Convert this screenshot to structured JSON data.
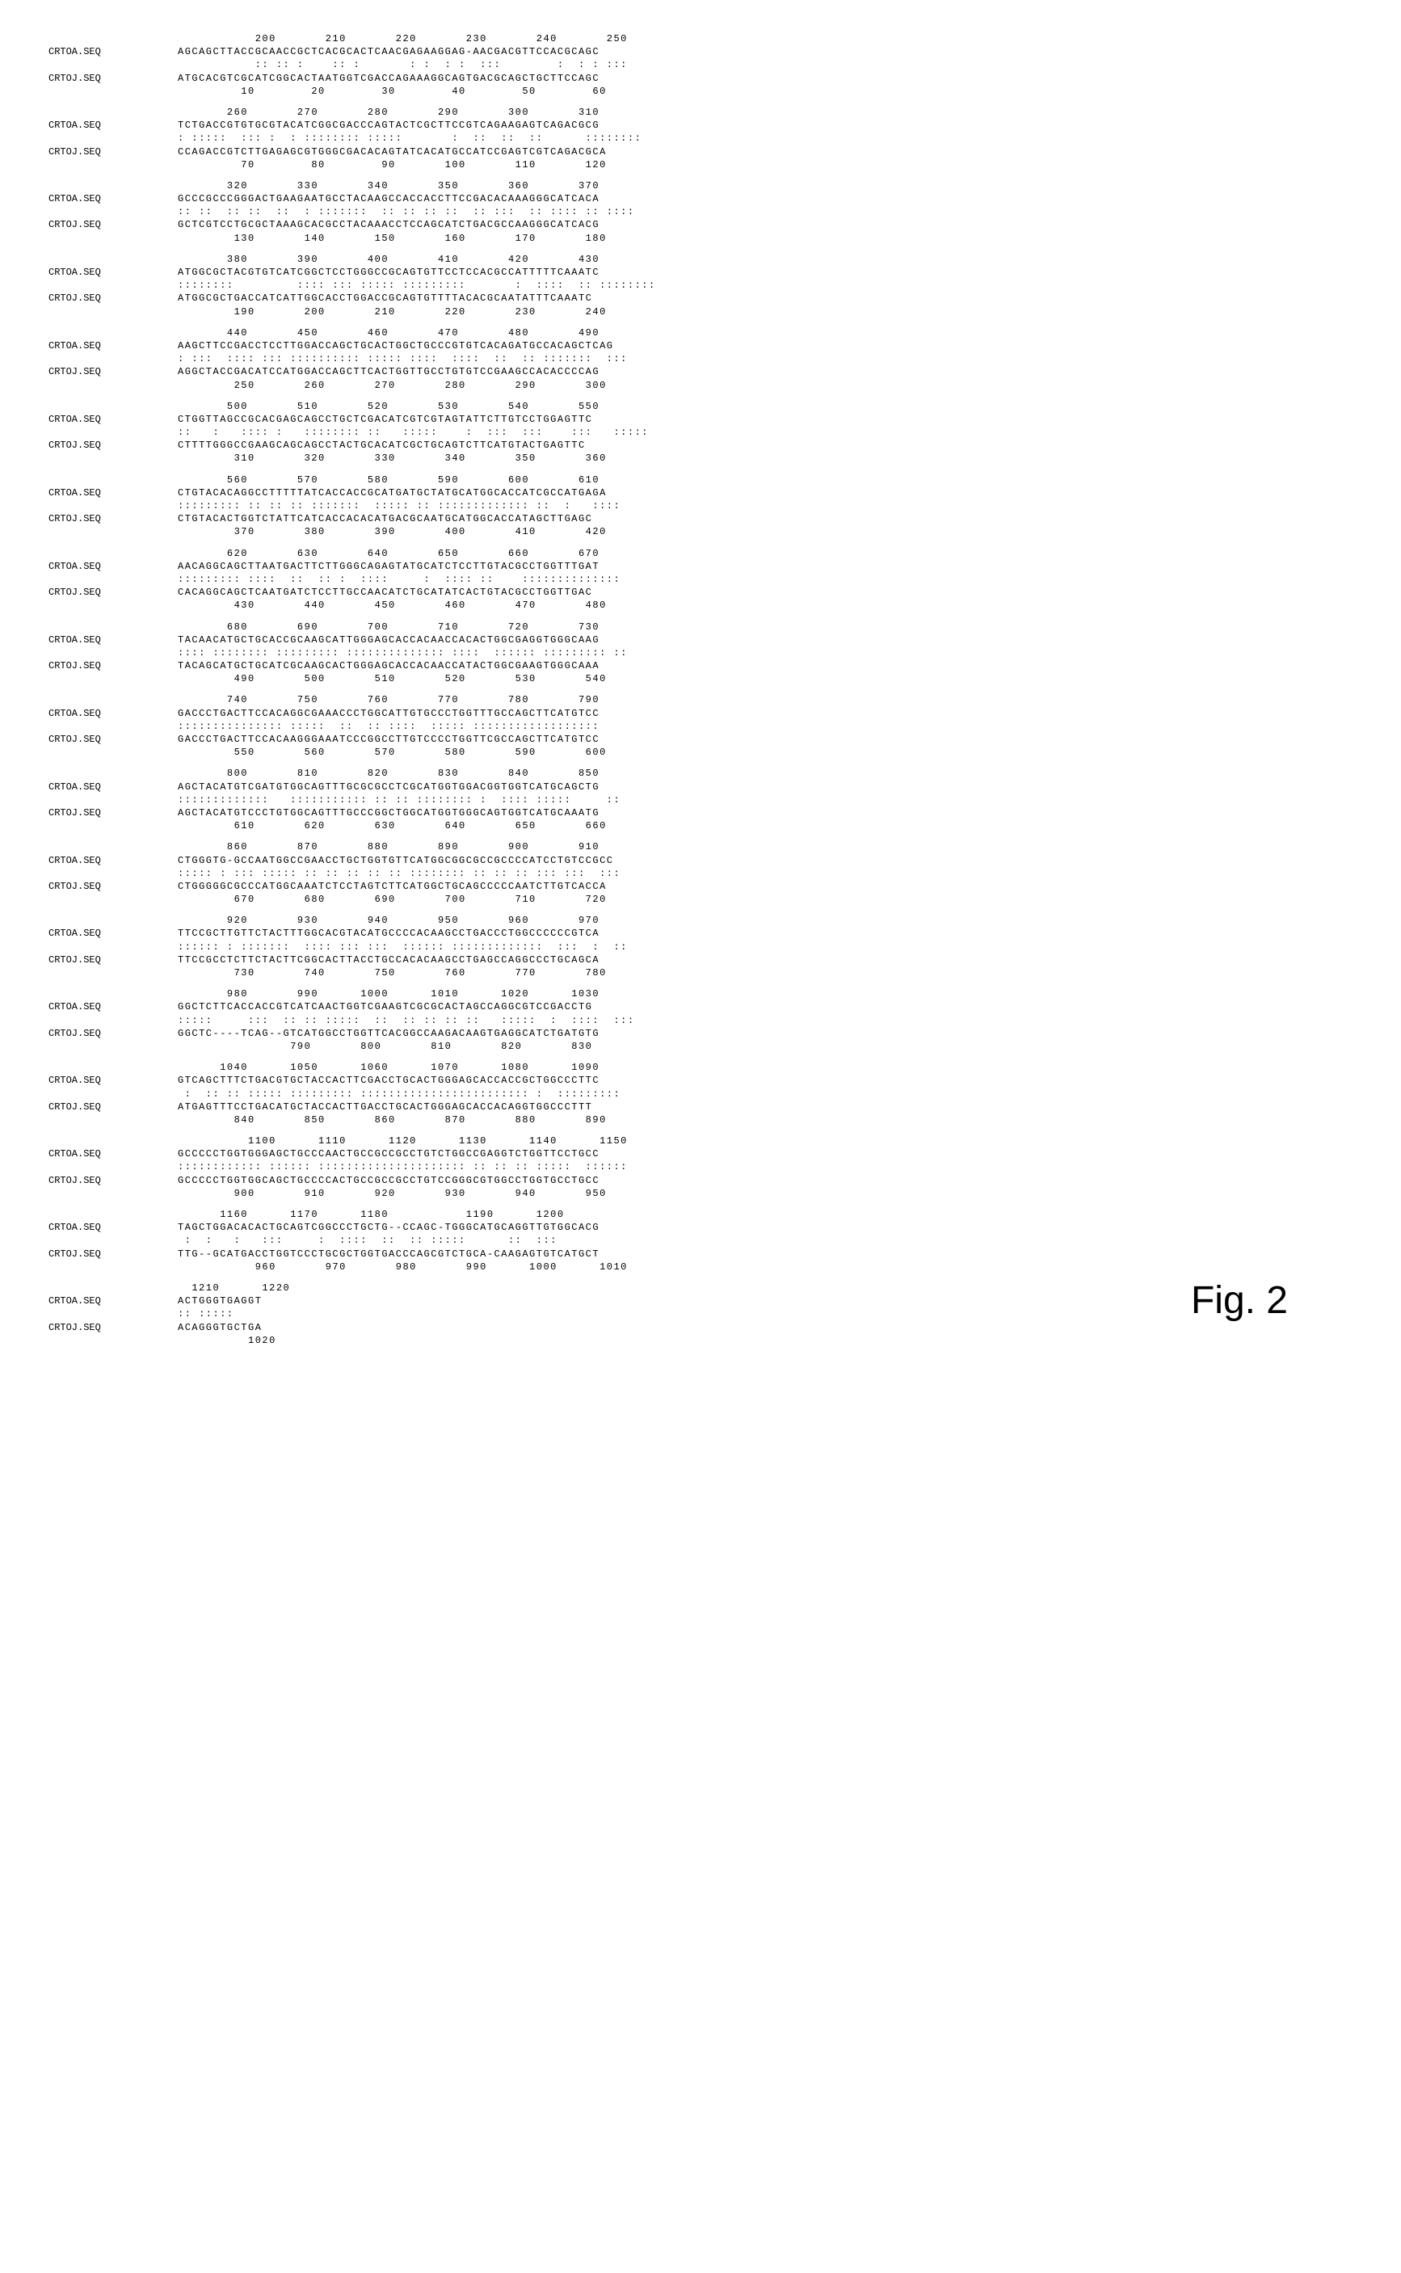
{
  "figure_label": "Fig. 2",
  "seq_label_a": "CRTOA.SEQ",
  "seq_label_j": "CRTOJ.SEQ",
  "blocks": [
    {
      "top_pos": "           200       210       220       230       240       250",
      "seq_a": "AGCAGCTTACCGCAACCGCTCACGCACTCAACGAGAAGGAG-AACGACGTTCCACGCAGC",
      "match": "           :: :: :    :: :       : :  : :  :::        :  : : :::",
      "seq_j": "ATGCACGTCGCATCGGCACTAATGGTCGACCAGAAAGGCAGTGACGCAGCTGCTTCCAGC",
      "bot_pos": "         10        20        30        40        50        60"
    },
    {
      "top_pos": "       260       270       280       290       300       310",
      "seq_a": "TCTGACCGTGTGCGTACATCGGCGACCCAGTACTCGCTTCCGTCAGAAGAGTCAGACGCG",
      "match": ": :::::  ::: :  : :::::::: :::::       :  ::  ::  ::      ::::::::",
      "seq_j": "CCAGACCGTCTTGAGAGCGTGGGCGACACAGTATCACATGCCATCCGAGTCGTCAGACGCA",
      "bot_pos": "         70        80        90       100       110       120"
    },
    {
      "top_pos": "       320       330       340       350       360       370",
      "seq_a": "GCCCGCCCGGGACTGAAGAATGCCTACAAGCCACCACCTTCCGACACAAAGGGCATCACA",
      "match": ":: ::  :: ::  ::  : :::::::  :: :: :: ::  :: :::  :: :::: :: ::::",
      "seq_j": "GCTCGTCCTGCGCTAAAGCACGCCTACAAACCTCCAGCATCTGACGCCAAGGGCATCACG",
      "bot_pos": "        130       140       150       160       170       180"
    },
    {
      "top_pos": "       380       390       400       410       420       430",
      "seq_a": "ATGGCGCTACGTGTCATCGGCTCCTGGGCCGCAGTGTTCCTCCACGCCATTTTTCAAATC",
      "match": "::::::::         :::: ::: ::::: :::::::::       :  ::::  :: ::::::::",
      "seq_j": "ATGGCGCTGACCATCATTGGCACCTGGACCGCAGTGTTTTACACGCAATATTTCAAATC",
      "bot_pos": "        190       200       210       220       230       240"
    },
    {
      "top_pos": "       440       450       460       470       480       490",
      "seq_a": "AAGCTTCCGACCTCCTTGGACCAGCTGCACTGGCTGCCCGTGTCACAGATGCCACAGCTCAG",
      "match": ": :::  :::: ::: :::::::::: ::::: ::::  ::::  ::  :: :::::::  :::",
      "seq_j": "AGGCTACCGACATCCATGGACCAGCTTCACTGGTTGCCTGTGTCCGAAGCCACACCCCAG",
      "bot_pos": "        250       260       270       280       290       300"
    },
    {
      "top_pos": "       500       510       520       530       540       550",
      "seq_a": "CTGGTTAGCCGCACGAGCAGCCTGCTCGACATCGTCGTAGTATTCTTGTCCTGGAGTTC",
      "match": "::   :   :::: :   :::::::: ::   :::::    :  :::  :::    :::   :::::",
      "seq_j": "CTTTTGGGCCGAAGCAGCAGCCTACTGCACATCGCTGCAGTCTTCATGTACTGAGTTC",
      "bot_pos": "        310       320       330       340       350       360"
    },
    {
      "top_pos": "       560       570       580       590       600       610",
      "seq_a": "CTGTACACAGGCCTTTTTATCACCACCGCATGATGCTATGCATGGCACCATCGCCATGAGA",
      "match": "::::::::: :: :: :: :::::::  ::::: :: ::::::::::::: ::  :   ::::",
      "seq_j": "CTGTACACTGGTCTATTCATCACCACACATGACGCAATGCATGGCACCATAGCTTGAGC",
      "bot_pos": "        370       380       390       400       410       420"
    },
    {
      "top_pos": "       620       630       640       650       660       670",
      "seq_a": "AACAGGCAGCTTAATGACTTCTTGGGCAGAGTATGCATCTCCTTGTACGCCTGGTTTGAT",
      "match": "::::::::: ::::  ::  :: :  ::::     :  :::: ::    ::::::::::::::",
      "seq_j": "CACAGGCAGCTCAATGATCTCCTTGCCAACATCTGCATATCACTGTACGCCTGGTTGAC",
      "bot_pos": "        430       440       450       460       470       480"
    },
    {
      "top_pos": "       680       690       700       710       720       730",
      "seq_a": "TACAACATGCTGCACCGCAAGCATTGGGAGCACCACAACCACACTGGCGAGGTGGGCAAG",
      "match": ":::: :::::::: ::::::::: :::::::::::::: ::::  :::::: ::::::::: ::",
      "seq_j": "TACAGCATGCTGCATCGCAAGCACTGGGAGCACCACAACCATACTGGCGAAGTGGGCAAA",
      "bot_pos": "        490       500       510       520       530       540"
    },
    {
      "top_pos": "       740       750       760       770       780       790",
      "seq_a": "GACCCTGACTTCCACAGGCGAAACCCTGGCATTGTGCCCTGGTTTGCCAGCTTCATGTCC",
      "match": "::::::::::::::: :::::  ::  :: ::::  ::::: ::::::::::::::::::",
      "seq_j": "GACCCTGACTTCCACAAGGGAAATCCCGGCCTTGTCCCCTGGTTCGCCAGCTTCATGTCC",
      "bot_pos": "        550       560       570       580       590       600"
    },
    {
      "top_pos": "       800       810       820       830       840       850",
      "seq_a": "AGCTACATGTCGATGTGGCAGTTTGCGCGCCTCGCATGGTGGACGGTGGTCATGCAGCTG",
      "match": ":::::::::::::   ::::::::::: :: :: :::::::: :  :::: :::::     ::",
      "seq_j": "AGCTACATGTCCCTGTGGCAGTTTGCCCGGCTGGCATGGTGGGCAGTGGTCATGCAAATG",
      "bot_pos": "        610       620       630       640       650       660"
    },
    {
      "top_pos": "       860       870       880       890       900       910",
      "seq_a": "CTGGGTG-GCCAATGGCCGAACCTGCTGGTGTTCATGGCGGCGCCGCCCCATCCTGTCCGCC",
      "match": "::::: : ::: ::::: :: :: :: :: :: :::::::: :: :: :: ::: :::  :::",
      "seq_j": "CTGGGGGCGCCCATGGCAAATCTCCTAGTCTTCATGGCTGCAGCCCCCAATCTTGTCACCA",
      "bot_pos": "        670       680       690       700       710       720"
    },
    {
      "top_pos": "       920       930       940       950       960       970",
      "seq_a": "TTCCGCTTGTTCTACTTTGGCACGTACATGCCCCACAAGCCTGACCCTGGCCCCCCGTCA",
      "match": ":::::: : :::::::  :::: ::: :::  :::::: :::::::::::::  :::  :  ::",
      "seq_j": "TTCCGCCTCTTCTACTTCGGCACTTACCTGCCACACAAGCCTGAGCCAGGCCCTGCAGCA",
      "bot_pos": "        730       740       750       760       770       780"
    },
    {
      "top_pos": "       980       990      1000      1010      1020      1030",
      "seq_a": "GGCTCTTCACCACCGTCATCAACTGGTCGAAGTCGCGCACTAGCCAGGCGTCCGACCTG",
      "match": ":::::     :::  :: :: :::::  ::  :: :: :: ::   :::::  :  ::::  :::",
      "seq_j": "GGCTC----TCAG--GTCATGGCCTGGTTCACGGCCAAGACAAGTGAGGCATCTGATGTG",
      "bot_pos": "                790       800       810       820       830"
    },
    {
      "top_pos": "      1040      1050      1060      1070      1080      1090",
      "seq_a": "GTCAGCTTTCTGACGTGCTACCACTTCGACCTGCACTGGGAGCACCACCGCTGGCCCTTC",
      "match": " :  :: :: ::::: ::::::::: :::::::::::::::::::::::: :  :::::::::",
      "seq_j": "ATGAGTTTCCTGACATGCTACCACTTGACCTGCACTGGGAGCACCACAGGTGGCCCTTT",
      "bot_pos": "        840       850       860       870       880       890"
    },
    {
      "top_pos": "          1100      1110      1120      1130      1140      1150",
      "seq_a": "GCCCCCTGGTGGGAGCTGCCCAACTGCCGCCGCCTGTCTGGCCGAGGTCTGGTTCCTGCC",
      "match": ":::::::::::: :::::: ::::::::::::::::::::: :: :: :: :::::  ::::::",
      "seq_j": "GCCCCCTGGTGGCAGCTGCCCCACTGCCGCCGCCTGTCCGGGCGTGGCCTGGTGCCTGCC",
      "bot_pos": "        900       910       920       930       940       950"
    },
    {
      "top_pos": "      1160      1170      1180           1190      1200",
      "seq_a": "TAGCTGGACACACTGCAGTCGGCCCTGCTG--CCAGC-TGGGCATGCAGGTTGTGGCACG",
      "match": " :  :   :   :::     :  ::::  ::  :: :::::      ::  :::",
      "seq_j": "TTG--GCATGACCTGGTCCCTGCGCTGGTGACCCAGCGTCTGCA-CAAGAGTGTCATGCT",
      "bot_pos": "           960       970       980       990      1000      1010"
    },
    {
      "top_pos": "  1210      1220",
      "seq_a": "ACTGGGTGAGGT",
      "match": ":: :::::",
      "seq_j": "ACAGGGTGCTGA",
      "bot_pos": "          1020"
    }
  ]
}
